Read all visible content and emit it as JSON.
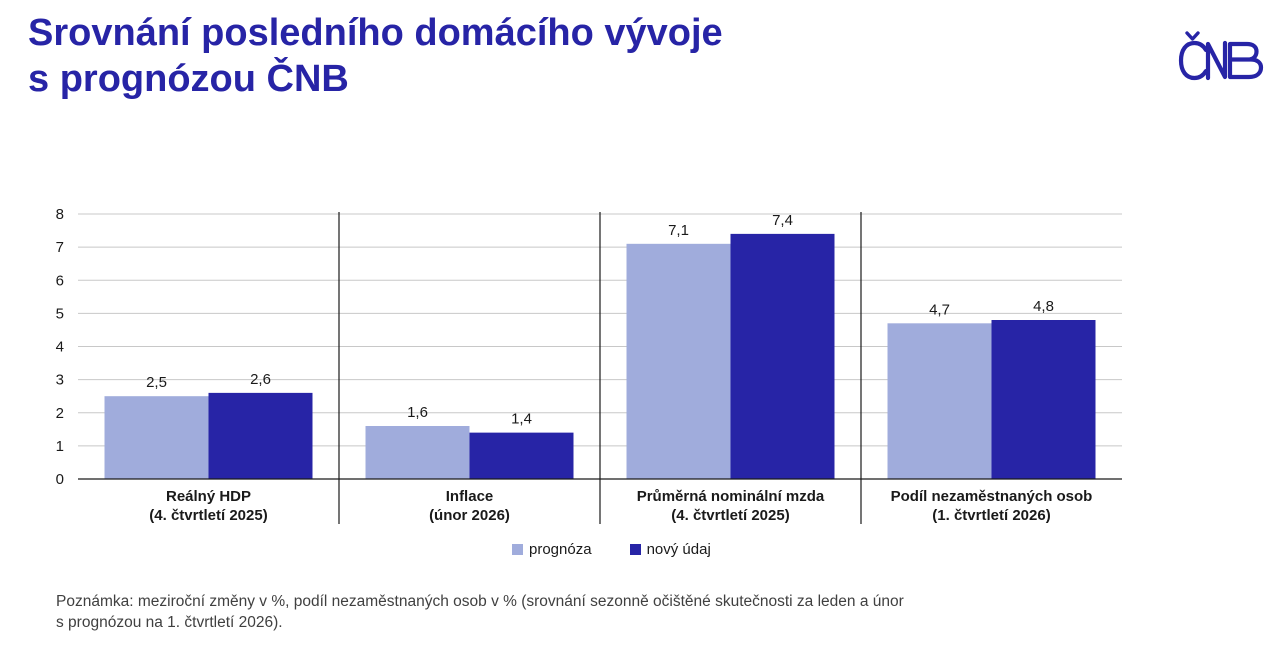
{
  "header": {
    "title_line1": "Srovnání posledního domácího vývoje",
    "title_line2": "s prognózou ČNB",
    "logo_text": "ČNB"
  },
  "colors": {
    "title": "#2724a6",
    "prognoza": "#a0acdc",
    "novy_udaj": "#2724a6",
    "grid": "#c8c8c8"
  },
  "chart_data": {
    "type": "bar",
    "categories": [
      [
        "Reálný HDP",
        "(4. čtvrtletí 2025)"
      ],
      [
        "Inflace",
        "(únor 2026)"
      ],
      [
        "Průměrná nominální mzda",
        "(4. čtvrtletí 2025)"
      ],
      [
        "Podíl nezaměstnaných osob",
        "(1. čtvrtletí 2026)"
      ]
    ],
    "series": [
      {
        "name": "prognóza",
        "values": [
          2.5,
          1.6,
          7.1,
          4.7
        ],
        "labels": [
          "2,5",
          "1,6",
          "7,1",
          "4,7"
        ]
      },
      {
        "name": "nový údaj",
        "values": [
          2.6,
          1.4,
          7.4,
          4.8
        ],
        "labels": [
          "2,6",
          "1,4",
          "7,4",
          "4,8"
        ]
      }
    ],
    "ylim": [
      0,
      8
    ],
    "yticks": [
      0,
      1,
      2,
      3,
      4,
      5,
      6,
      7,
      8
    ],
    "title": "",
    "xlabel": "",
    "ylabel": "",
    "grid": true,
    "legend": "bottom-center"
  },
  "legend": {
    "prognoza_label": "prognóza",
    "novy_udaj_label": "nový údaj"
  },
  "note": {
    "line1": "Poznámka: meziroční změny v %, podíl nezaměstnaných osob v % (srovnání sezonně očištěné skutečnosti za leden a únor",
    "line2": "s prognózou na 1. čtvrtletí 2026)."
  }
}
